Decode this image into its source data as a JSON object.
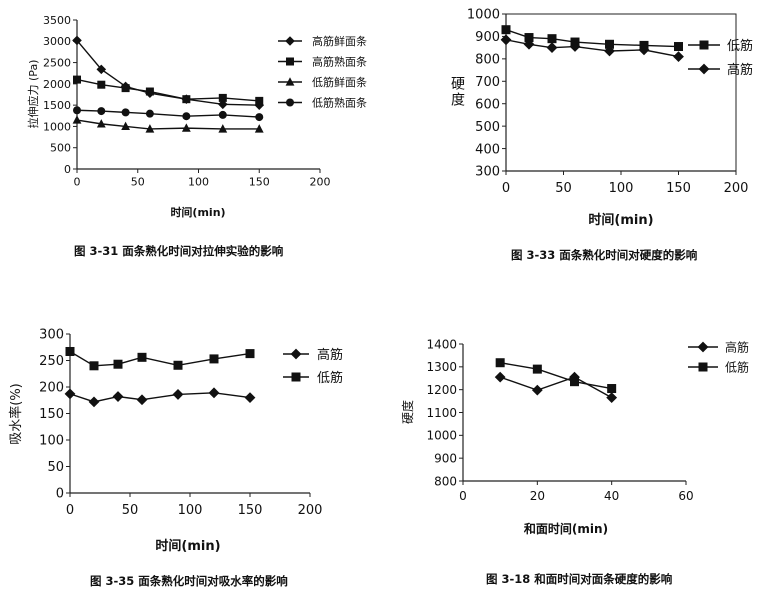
{
  "chart_data": [
    {
      "type": "line",
      "title": "图 3-31 面条熟化时间对拉伸实验的影响",
      "xlabel": "时间(min)",
      "ylabel": "拉伸应力 (Pa)",
      "xlim": [
        0,
        200
      ],
      "ylim": [
        0,
        3500
      ],
      "xticks": [
        0,
        50,
        100,
        150,
        200
      ],
      "yticks": [
        0,
        500,
        1000,
        1500,
        2000,
        2500,
        3000,
        3500
      ],
      "legend_position": "right",
      "series": [
        {
          "name": "高筋鲜面条",
          "marker": "diamond",
          "x": [
            0,
            20,
            40,
            60,
            90,
            120,
            150
          ],
          "y": [
            3020,
            2340,
            1940,
            1780,
            1640,
            1520,
            1500
          ]
        },
        {
          "name": "高筋熟面条",
          "marker": "square",
          "x": [
            0,
            20,
            40,
            60,
            90,
            120,
            150
          ],
          "y": [
            2100,
            1980,
            1900,
            1820,
            1640,
            1670,
            1600
          ]
        },
        {
          "name": "低筋鲜面条",
          "marker": "triangle",
          "x": [
            0,
            20,
            40,
            60,
            90,
            120,
            150
          ],
          "y": [
            1150,
            1060,
            1000,
            940,
            960,
            940,
            940
          ]
        },
        {
          "name": "低筋熟面条",
          "marker": "circle",
          "x": [
            0,
            20,
            40,
            60,
            90,
            120,
            150
          ],
          "y": [
            1380,
            1360,
            1330,
            1300,
            1240,
            1270,
            1220
          ]
        }
      ]
    },
    {
      "type": "line",
      "title": "图 3-33 面条熟化时间对硬度的影响",
      "xlabel": "时间(min)",
      "ylabel": "硬度",
      "xlim": [
        0,
        200
      ],
      "ylim": [
        300,
        1000
      ],
      "xticks": [
        0,
        50,
        100,
        150,
        200
      ],
      "yticks": [
        300,
        400,
        500,
        600,
        700,
        800,
        900,
        1000
      ],
      "legend_position": "right",
      "series": [
        {
          "name": "低筋",
          "marker": "square",
          "x": [
            0,
            20,
            40,
            60,
            90,
            120,
            150
          ],
          "y": [
            930,
            895,
            890,
            875,
            865,
            860,
            855
          ]
        },
        {
          "name": "高筋",
          "marker": "diamond",
          "x": [
            0,
            20,
            40,
            60,
            90,
            120,
            150
          ],
          "y": [
            885,
            865,
            850,
            855,
            835,
            840,
            810
          ]
        }
      ]
    },
    {
      "type": "line",
      "title": "图 3-35 面条熟化时间对吸水率的影响",
      "xlabel": "时间(min)",
      "ylabel": "吸水率(%)",
      "xlim": [
        0,
        200
      ],
      "ylim": [
        0,
        300
      ],
      "xticks": [
        0,
        50,
        100,
        150,
        200
      ],
      "yticks": [
        0,
        50,
        100,
        150,
        200,
        250,
        300
      ],
      "legend_position": "right",
      "series": [
        {
          "name": "高筋",
          "marker": "diamond",
          "x": [
            0,
            20,
            40,
            60,
            90,
            120,
            150
          ],
          "y": [
            187,
            172,
            182,
            176,
            186,
            189,
            180
          ]
        },
        {
          "name": "低筋",
          "marker": "square",
          "x": [
            0,
            20,
            40,
            60,
            90,
            120,
            150
          ],
          "y": [
            267,
            240,
            243,
            256,
            241,
            253,
            263
          ]
        }
      ]
    },
    {
      "type": "line",
      "title": "图 3-18 和面时间对面条硬度的影响",
      "xlabel": "和面时间(min)",
      "ylabel": "硬度",
      "xlim": [
        0,
        60
      ],
      "ylim": [
        800,
        1400
      ],
      "xticks": [
        0,
        20,
        40,
        60
      ],
      "yticks": [
        800,
        900,
        1000,
        1100,
        1200,
        1300,
        1400
      ],
      "legend_position": "right",
      "series": [
        {
          "name": "高筋",
          "marker": "diamond",
          "x": [
            10,
            20,
            30,
            40
          ],
          "y": [
            1255,
            1198,
            1255,
            1165
          ]
        },
        {
          "name": "低筋",
          "marker": "square",
          "x": [
            10,
            20,
            30,
            40
          ],
          "y": [
            1318,
            1290,
            1235,
            1205
          ]
        }
      ]
    }
  ]
}
